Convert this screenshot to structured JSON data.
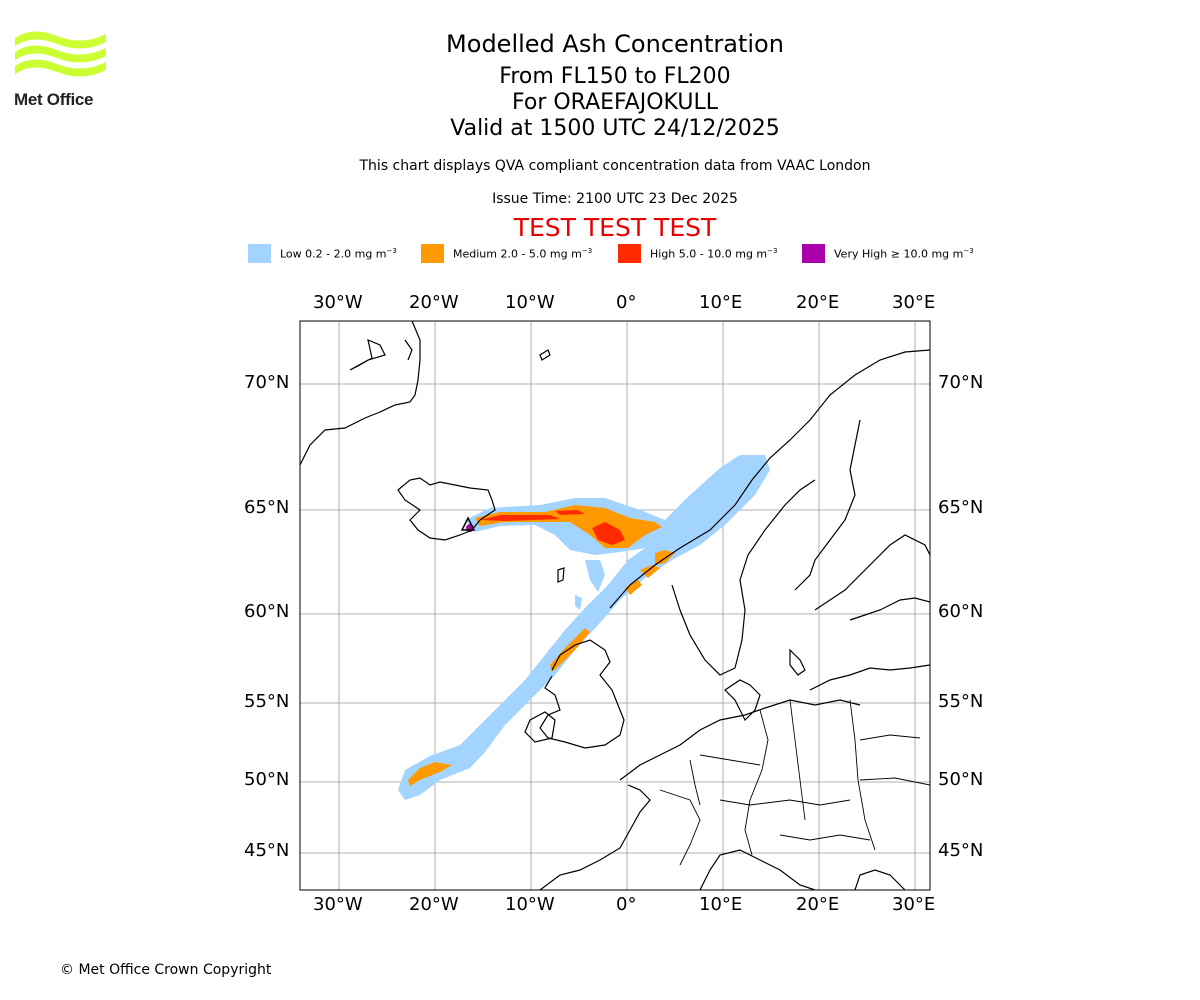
{
  "header": {
    "title": "Modelled Ash Concentration",
    "levels": "From FL150 to FL200",
    "volcano": "For ORAEFAJOKULL",
    "valid": "Valid at 1500 UTC 24/12/2025",
    "description": "This chart displays QVA compliant concentration data from VAAC London",
    "issue_time": "Issue Time: 2100 UTC 23 Dec 2025",
    "test_banner": "TEST TEST TEST"
  },
  "logo": {
    "text": "Met Office",
    "color": "#ccff33"
  },
  "legend": [
    {
      "label": "Low 0.2 - 2.0 mg m",
      "color": "#a3d4ff"
    },
    {
      "label": "Medium 2.0 - 5.0 mg m",
      "color": "#ff9900"
    },
    {
      "label": "High 5.0 - 10.0 mg m",
      "color": "#ff2a00"
    },
    {
      "label": "Very High ≥ 10.0 mg m",
      "color": "#aa00aa"
    }
  ],
  "legend_unit_exponent": "−3",
  "map": {
    "lon_labels": [
      "30°W",
      "20°W",
      "10°W",
      "0°",
      "10°E",
      "20°E",
      "30°E"
    ],
    "lat_labels": [
      "70°N",
      "65°N",
      "60°N",
      "55°N",
      "50°N",
      "45°N"
    ]
  },
  "footer": {
    "copyright": "© Met Office Crown Copyright"
  }
}
